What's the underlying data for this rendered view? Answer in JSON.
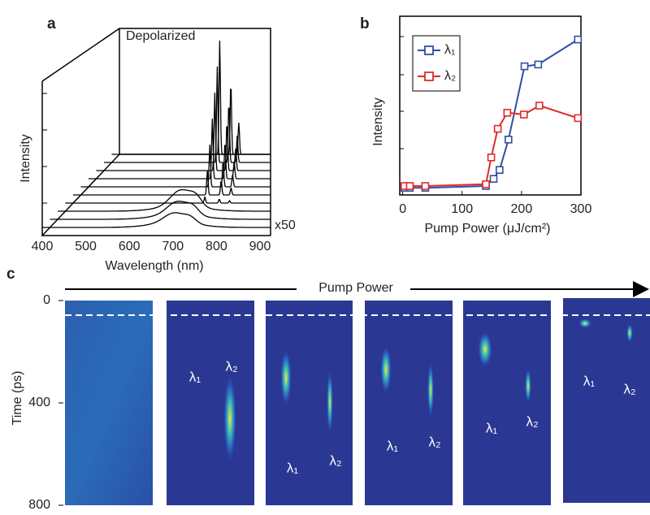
{
  "panel_a": {
    "label": "a",
    "annotation": "Depolarized",
    "xlabel": "Wavelength (nm)",
    "ylabel": "Intensity",
    "xticks": [
      400,
      500,
      600,
      700,
      800,
      900
    ],
    "multiplier": "x50"
  },
  "chart_data": {
    "type": "line",
    "label": "b",
    "xlabel": "Pump Power (μJ/cm²)",
    "ylabel": "Intensity",
    "xlim": [
      -5,
      300
    ],
    "xticks": [
      0,
      100,
      200,
      300
    ],
    "ylim": [
      0,
      1
    ],
    "legend": "top-left",
    "series": [
      {
        "name": "λ₁",
        "color": "#2e4fa3",
        "x": [
          3,
          12,
          38,
          140,
          153,
          163,
          178,
          205,
          228,
          295
        ],
        "values": [
          0.04,
          0.04,
          0.04,
          0.05,
          0.09,
          0.14,
          0.31,
          0.72,
          0.73,
          0.87
        ]
      },
      {
        "name": "λ₂",
        "color": "#e02a2a",
        "x": [
          3,
          12,
          38,
          140,
          149,
          160,
          176,
          204,
          230,
          295
        ],
        "values": [
          0.05,
          0.05,
          0.05,
          0.06,
          0.21,
          0.37,
          0.46,
          0.45,
          0.5,
          0.43
        ]
      }
    ]
  },
  "panel_c": {
    "label": "c",
    "arrow_label": "Pump Power",
    "ylabel": "Time (ps)",
    "ylim": [
      0,
      800
    ],
    "yticks": [
      0,
      400,
      800
    ],
    "dashed_line_time": 57,
    "frames": [
      [],
      [
        "λ₁",
        "λ₂"
      ],
      [
        "λ₁",
        "λ₂"
      ],
      [
        "λ₁",
        "λ₂"
      ],
      [
        "λ₁",
        "λ₂"
      ],
      [
        "λ₁",
        "λ₂"
      ]
    ]
  }
}
